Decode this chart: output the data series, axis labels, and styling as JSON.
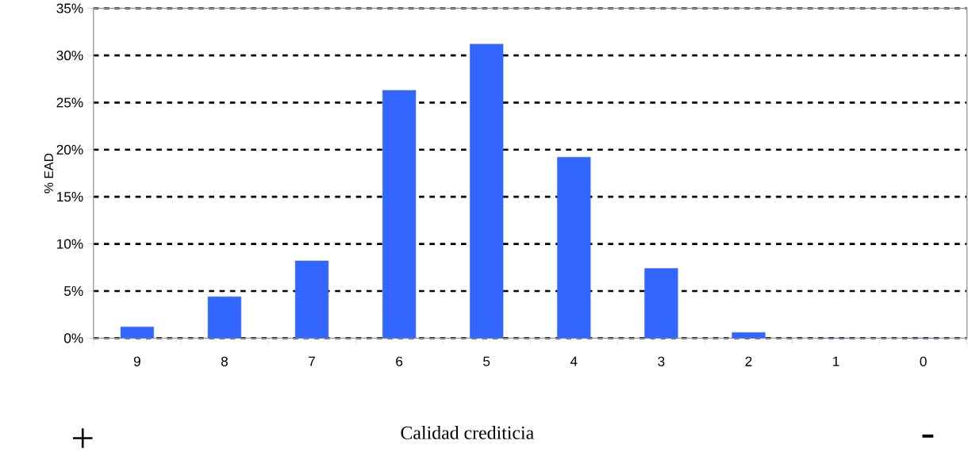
{
  "chart_data": {
    "type": "bar",
    "xlabel": "Calidad crediticia",
    "ylabel": "% EAD",
    "categories": [
      "9",
      "8",
      "7",
      "6",
      "5",
      "4",
      "3",
      "2",
      "1",
      "0"
    ],
    "values": [
      1.2,
      4.4,
      8.2,
      26.3,
      31.2,
      19.2,
      7.4,
      0.6,
      0,
      0
    ],
    "color": "#3366ff",
    "ylim": [
      0,
      35
    ],
    "yticks": [
      {
        "value": 0,
        "label": "0%"
      },
      {
        "value": 5,
        "label": "5%"
      },
      {
        "value": 10,
        "label": "10%"
      },
      {
        "value": 15,
        "label": "15%"
      },
      {
        "value": 20,
        "label": "20%"
      },
      {
        "value": 25,
        "label": "25%"
      },
      {
        "value": 30,
        "label": "30%"
      },
      {
        "value": 35,
        "label": "35%"
      }
    ],
    "grid": "y",
    "annotations": [
      "+",
      "-"
    ]
  }
}
